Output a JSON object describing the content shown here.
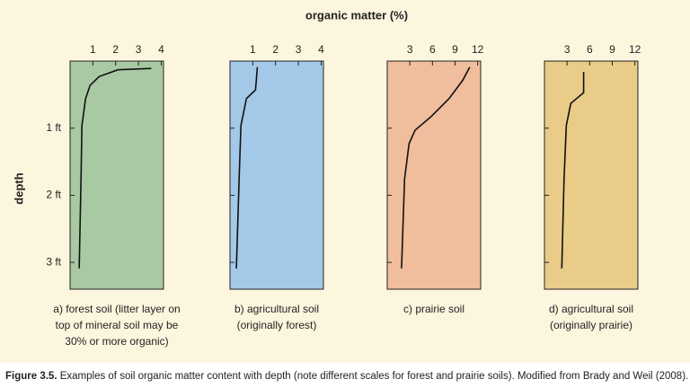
{
  "title": "organic matter (%)",
  "y_label": "depth",
  "caption": {
    "label": "Figure 3.5.",
    "text": " Examples of soil organic matter content with depth (note different scales for forest and prairie soils). Modified from Brady and Weil (2008)."
  },
  "chart_data": [
    {
      "type": "line",
      "label": [
        "a) forest soil (litter layer on",
        "top of mineral soil may be",
        "30% or more organic)"
      ],
      "color": "#a9c8a4",
      "xlim": [
        0,
        4.1
      ],
      "xticks": [
        1,
        2,
        3,
        4
      ],
      "ylim": [
        0,
        3.4
      ],
      "yticks": [
        {
          "value": 1,
          "label": "1 ft"
        },
        {
          "value": 2,
          "label": "2 ft"
        },
        {
          "value": 3,
          "label": "3 ft"
        }
      ],
      "x": [
        3.56,
        2.1,
        1.28,
        0.88,
        0.68,
        0.52,
        0.48,
        0.4
      ],
      "values": [
        0.11,
        0.13,
        0.23,
        0.36,
        0.56,
        0.96,
        1.76,
        3.09
      ]
    },
    {
      "type": "line",
      "label": [
        "b) agricultural soil",
        "(originally forest)"
      ],
      "color": "#a4c8e8",
      "xlim": [
        0,
        4.1
      ],
      "xticks": [
        1,
        2,
        3,
        4
      ],
      "ylim": [
        0,
        3.4
      ],
      "ytick_marks": [
        1,
        2,
        3
      ],
      "x": [
        1.2,
        1.12,
        0.72,
        0.48,
        0.4,
        0.28
      ],
      "values": [
        0.09,
        0.43,
        0.56,
        0.96,
        1.76,
        3.09
      ]
    },
    {
      "type": "line",
      "label": [
        "c) prairie soil"
      ],
      "color": "#f0bd9d",
      "xlim": [
        0,
        12.4
      ],
      "xticks": [
        3,
        6,
        9,
        12
      ],
      "ylim": [
        0,
        3.4
      ],
      "ytick_marks": [
        1,
        2,
        3
      ],
      "x": [
        10.95,
        10.0,
        8.2,
        5.8,
        3.7,
        2.9,
        2.3,
        1.9
      ],
      "values": [
        0.09,
        0.29,
        0.56,
        0.83,
        1.03,
        1.23,
        1.76,
        3.09
      ]
    },
    {
      "type": "line",
      "label": [
        "d) agricultural soil",
        "(originally prairie)"
      ],
      "color": "#e8cc88",
      "xlim": [
        0,
        12.4
      ],
      "xticks": [
        3,
        6,
        9,
        12
      ],
      "ylim": [
        0,
        3.4
      ],
      "ytick_marks": [
        1,
        2,
        3
      ],
      "x": [
        5.2,
        5.2,
        3.5,
        2.9,
        2.6,
        2.3
      ],
      "values": [
        0.16,
        0.47,
        0.63,
        0.96,
        1.76,
        3.09
      ]
    }
  ]
}
